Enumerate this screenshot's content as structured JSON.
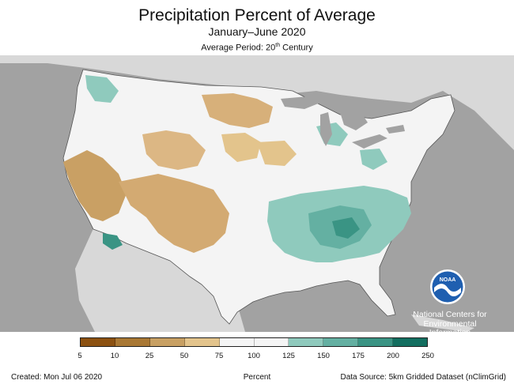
{
  "header": {
    "title": "Precipitation Percent of Average",
    "subtitle": "January–June 2020",
    "average_period_prefix": "Average Period: 20",
    "average_period_sup": "th",
    "average_period_suffix": " Century"
  },
  "legend": {
    "colors": [
      "#8c5111",
      "#a97834",
      "#c8a063",
      "#e3c48c",
      "#f5f5f5",
      "#f5f5f5",
      "#8fcabd",
      "#64b0a2",
      "#3a9484",
      "#136f60"
    ],
    "ticks": [
      "5",
      "10",
      "25",
      "50",
      "75",
      "100",
      "125",
      "150",
      "175",
      "200",
      "250"
    ]
  },
  "branding": {
    "logo_text": "NOAA",
    "org_line1": "National Centers for",
    "org_line2": "Environmental",
    "org_line3": "Information"
  },
  "footer": {
    "created": "Created: Mon Jul 06 2020",
    "unit": "Percent",
    "source": "Data Source: 5km Gridded Dataset (nClimGrid)"
  }
}
